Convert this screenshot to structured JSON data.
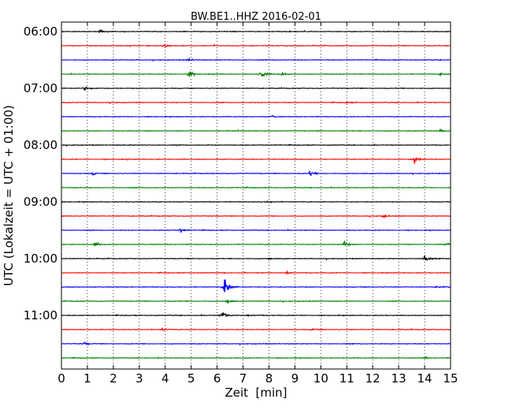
{
  "chart_data": {
    "type": "line",
    "title": "BW.BE1..HHZ 2016-02-01",
    "xlabel": "Zeit  [min]",
    "ylabel": "UTC (Lokalzeit = UTC + 01:00)",
    "xlim": [
      0,
      15
    ],
    "x_ticks": [
      "0",
      "1",
      "2",
      "3",
      "4",
      "5",
      "6",
      "7",
      "8",
      "9",
      "10",
      "11",
      "12",
      "13",
      "14",
      "15"
    ],
    "y_ticks": [
      "06:00",
      "07:00",
      "08:00",
      "09:00",
      "10:00",
      "11:00"
    ],
    "grid": "vertical dotted",
    "color_cycle": [
      "#000000",
      "#ff0000",
      "#0000ff",
      "#008000"
    ],
    "trace_count": 24,
    "first_trace": "06:00",
    "trace_length_min": 15,
    "events": [
      {
        "trace": 0,
        "t": 1.5,
        "amp": 0.3
      },
      {
        "trace": 1,
        "t": 4.0,
        "amp": 0.55
      },
      {
        "trace": 2,
        "t": 4.9,
        "amp": 0.3
      },
      {
        "trace": 3,
        "t": 4.9,
        "amp": 1.0
      },
      {
        "trace": 3,
        "t": 7.7,
        "amp": 1.2
      },
      {
        "trace": 3,
        "t": 8.5,
        "amp": 0.35
      },
      {
        "trace": 3,
        "t": 14.6,
        "amp": 0.3
      },
      {
        "trace": 4,
        "t": 0.9,
        "amp": 0.55
      },
      {
        "trace": 5,
        "t": 11.0,
        "amp": 0.2
      },
      {
        "trace": 6,
        "t": 8.1,
        "amp": 0.25
      },
      {
        "trace": 7,
        "t": 14.6,
        "amp": 0.3
      },
      {
        "trace": 9,
        "t": 13.6,
        "amp": 1.0
      },
      {
        "trace": 10,
        "t": 9.6,
        "amp": 0.65
      },
      {
        "trace": 10,
        "t": 1.2,
        "amp": 0.35
      },
      {
        "trace": 12,
        "t": 8.0,
        "amp": 0.3
      },
      {
        "trace": 13,
        "t": 12.4,
        "amp": 0.3
      },
      {
        "trace": 14,
        "t": 4.6,
        "amp": 0.55
      },
      {
        "trace": 15,
        "t": 1.3,
        "amp": 0.6
      },
      {
        "trace": 15,
        "t": 10.9,
        "amp": 0.8
      },
      {
        "trace": 15,
        "t": 14.8,
        "amp": 0.4
      },
      {
        "trace": 16,
        "t": 14.0,
        "amp": 1.0
      },
      {
        "trace": 16,
        "t": 8.0,
        "amp": 0.25
      },
      {
        "trace": 17,
        "t": 8.7,
        "amp": 0.3
      },
      {
        "trace": 18,
        "t": 6.3,
        "amp": 3.0
      },
      {
        "trace": 18,
        "t": 14.5,
        "amp": 0.25
      },
      {
        "trace": 19,
        "t": 6.4,
        "amp": 0.7
      },
      {
        "trace": 20,
        "t": 6.2,
        "amp": 1.0
      },
      {
        "trace": 20,
        "t": 7.2,
        "amp": 0.25
      },
      {
        "trace": 21,
        "t": 3.9,
        "amp": 0.3
      },
      {
        "trace": 21,
        "t": 9.7,
        "amp": 0.3
      },
      {
        "trace": 22,
        "t": 0.9,
        "amp": 0.3
      },
      {
        "trace": 23,
        "t": 14.0,
        "amp": 0.2
      }
    ]
  }
}
